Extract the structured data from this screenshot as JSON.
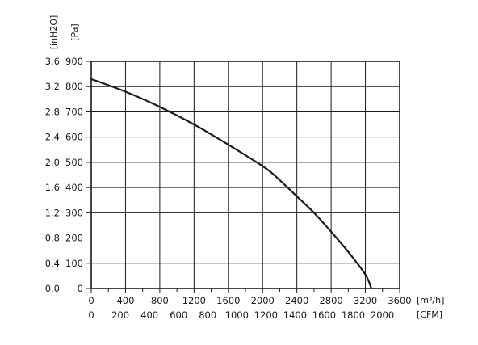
{
  "chart_data": {
    "type": "line",
    "title": "",
    "x_primary": {
      "unit": "[m³/h]",
      "ticks": [
        0,
        400,
        800,
        1200,
        1600,
        2000,
        2400,
        2800,
        3200,
        3600
      ],
      "range": [
        0,
        3600
      ]
    },
    "x_secondary": {
      "unit": "[CFM]",
      "ticks": [
        0,
        200,
        400,
        600,
        800,
        1000,
        1200,
        1400,
        1600,
        1800,
        2000
      ]
    },
    "y_primary": {
      "unit": "[Pa]",
      "ticks": [
        0,
        100,
        200,
        300,
        400,
        500,
        600,
        700,
        800,
        900
      ],
      "range": [
        0,
        900
      ]
    },
    "y_secondary": {
      "unit": "[inH2O]",
      "ticks": [
        "0.0",
        "0.4",
        "0.8",
        "1.2",
        "1.6",
        "2.0",
        "2.4",
        "2.8",
        "3.2",
        "3.6"
      ]
    },
    "grid": true,
    "series": [
      {
        "x": [
          0,
          400,
          800,
          1200,
          1600,
          2000,
          2150,
          2400,
          2600,
          2800,
          3000,
          3200,
          3270
        ],
        "y": [
          830,
          780,
          720,
          650,
          570,
          485,
          445,
          365,
          300,
          225,
          145,
          55,
          0
        ]
      }
    ]
  },
  "colors": {
    "line": "#1a1a1a",
    "grid": "#1a1a1a",
    "frame": "#1a1a1a",
    "background": "#ffffff"
  }
}
